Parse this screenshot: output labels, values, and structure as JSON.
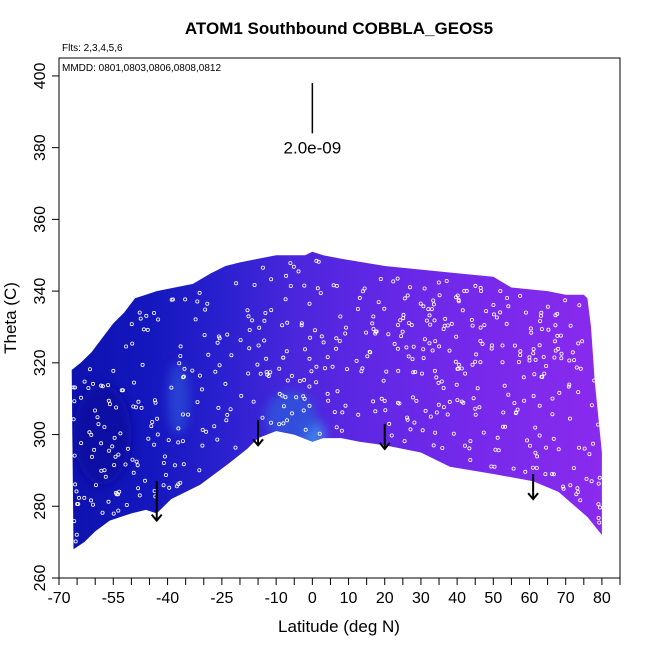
{
  "chart_data": {
    "type": "heatmap",
    "title": "ATOM1 Southbound COBBLA_GEOS5",
    "flights_label": "Flts: 2,3,4,5,6",
    "dates_label": "MMDD: 0801,0803,0806,0808,0812",
    "xlabel": "Latitude (deg N)",
    "ylabel": "Theta (C)",
    "xlim": [
      -70,
      85
    ],
    "ylim": [
      260,
      405
    ],
    "x_ticks": [
      -70,
      -65,
      -60,
      -55,
      -50,
      -45,
      -40,
      -35,
      -30,
      -25,
      -20,
      -15,
      -10,
      -5,
      0,
      5,
      10,
      15,
      20,
      25,
      30,
      35,
      40,
      45,
      50,
      55,
      60,
      65,
      70,
      75,
      80,
      85
    ],
    "x_tick_labels": [
      "-70",
      "-55",
      "-40",
      "-25",
      "-10",
      "0",
      "10",
      "20",
      "30",
      "40",
      "50",
      "60",
      "70",
      "80"
    ],
    "x_tick_label_values": [
      -70,
      -55,
      -40,
      -25,
      -10,
      0,
      10,
      20,
      30,
      40,
      50,
      60,
      70,
      80
    ],
    "y_ticks": [
      260,
      280,
      300,
      320,
      340,
      360,
      380,
      400
    ],
    "y_tick_labels": [
      "260",
      "280",
      "300",
      "320",
      "340",
      "360",
      "380",
      "400"
    ],
    "scale_bar": {
      "label": "2.0e-09",
      "x": 0,
      "y_top": 398,
      "y_bottom": 384
    },
    "upper_boundary": [
      [
        -66.5,
        318
      ],
      [
        -64,
        320
      ],
      [
        -61,
        323
      ],
      [
        -58,
        327
      ],
      [
        -55,
        331
      ],
      [
        -52,
        334
      ],
      [
        -49,
        338
      ],
      [
        -46,
        339
      ],
      [
        -43,
        340
      ],
      [
        -38,
        341
      ],
      [
        -33,
        342
      ],
      [
        -28,
        345
      ],
      [
        -24,
        347
      ],
      [
        -20,
        348
      ],
      [
        -15,
        349
      ],
      [
        -10,
        350
      ],
      [
        -5,
        350
      ],
      [
        -2,
        350
      ],
      [
        0,
        351
      ],
      [
        3,
        350
      ],
      [
        8,
        349
      ],
      [
        14,
        348
      ],
      [
        20,
        347
      ],
      [
        30,
        346
      ],
      [
        40,
        345
      ],
      [
        50,
        344
      ],
      [
        55,
        341
      ],
      [
        65,
        340
      ],
      [
        70,
        339
      ],
      [
        75,
        339
      ],
      [
        76,
        338
      ],
      [
        77,
        330
      ],
      [
        78,
        315
      ],
      [
        79,
        305
      ],
      [
        80,
        295
      ]
    ],
    "lower_boundary": [
      [
        80,
        272
      ],
      [
        76,
        277
      ],
      [
        68,
        284
      ],
      [
        61,
        287
      ],
      [
        50,
        289
      ],
      [
        38,
        291
      ],
      [
        30,
        295
      ],
      [
        20,
        297
      ],
      [
        13,
        298
      ],
      [
        8,
        299
      ],
      [
        3,
        299
      ],
      [
        0,
        298
      ],
      [
        -5,
        300
      ],
      [
        -10,
        301
      ],
      [
        -15,
        299
      ],
      [
        -18,
        296
      ],
      [
        -23,
        292
      ],
      [
        -31,
        286
      ],
      [
        -39,
        282
      ],
      [
        -43,
        278
      ],
      [
        -46,
        279
      ],
      [
        -50,
        278
      ],
      [
        -56,
        276
      ],
      [
        -60,
        273
      ],
      [
        -63,
        270
      ],
      [
        -66,
        268
      ]
    ],
    "colormap": {
      "stops": [
        {
          "x": -66,
          "color": "#0e12ae"
        },
        {
          "x": -45,
          "color": "#1417be"
        },
        {
          "x": -25,
          "color": "#2a20cf"
        },
        {
          "x": -5,
          "color": "#4a26dc"
        },
        {
          "x": 15,
          "color": "#5f27e4"
        },
        {
          "x": 40,
          "color": "#7329ea"
        },
        {
          "x": 80,
          "color": "#8a2aee"
        }
      ]
    },
    "features": [
      {
        "name": "light-blue-patch",
        "x": 0,
        "y": 300,
        "rx": 3.5,
        "ry": 4,
        "color": "#3d8fe8"
      },
      {
        "name": "blue-patch-south",
        "x": -37,
        "y": 310,
        "rx": 3,
        "ry": 10,
        "color": "#2c47d6"
      },
      {
        "name": "blue-patch-center",
        "x": -6,
        "y": 305,
        "rx": 7,
        "ry": 7,
        "color": "#2d54dc"
      },
      {
        "name": "dark-patch-south",
        "x": -58,
        "y": 300,
        "rx": 8,
        "ry": 14,
        "color": "#0a0ea0"
      }
    ],
    "arrows": [
      {
        "x": -43,
        "y_top": 287,
        "y_bottom": 276
      },
      {
        "x": -15,
        "y_top": 304,
        "y_bottom": 297
      },
      {
        "x": 20,
        "y_top": 303,
        "y_bottom": 296
      },
      {
        "x": 61,
        "y_top": 289,
        "y_bottom": 282
      }
    ],
    "marker_style": "open-circle",
    "marker_color": "#ffffff"
  }
}
